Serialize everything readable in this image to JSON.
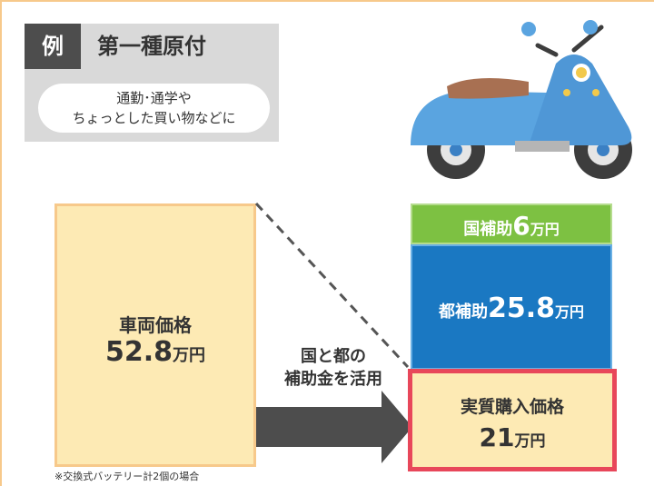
{
  "example_tag": "例",
  "header": {
    "title": "第一種原付",
    "subtitle_lines": [
      "通勤･通学や",
      "ちょっとした買い物などに"
    ]
  },
  "vehicle_price": {
    "label": "車両価格",
    "amount": "52.8",
    "unit": "万円"
  },
  "arrow_text": [
    "国と都の",
    "補助金を活用"
  ],
  "national_subsidy": {
    "label": "国補助",
    "amount": "6",
    "unit": "万円"
  },
  "tokyo_subsidy": {
    "label": "都補助",
    "amount": "25.8",
    "unit": "万円"
  },
  "effective_price": {
    "label": "実質購入価格",
    "amount": "21",
    "unit": "万円"
  },
  "footnote": "※交換式バッテリー計2個の場合"
}
